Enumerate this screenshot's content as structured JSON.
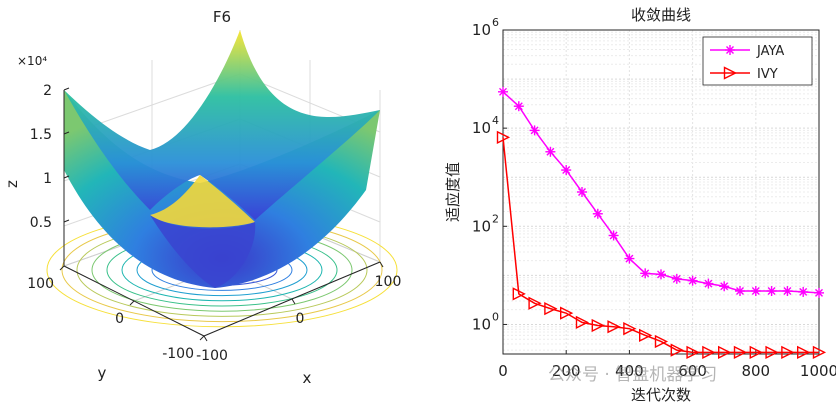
{
  "watermark": "公众号 · 智盘机器学习",
  "chart_data": [
    {
      "type": "surface",
      "title": "F6",
      "xlabel": "x",
      "ylabel": "y",
      "zlabel": "z",
      "exponent_label": "×10⁴",
      "x_ticks": [
        "-100",
        "0",
        "100"
      ],
      "y_ticks": [
        "-100",
        "0",
        "100"
      ],
      "z_ticks": [
        "0.5",
        "1",
        "1.5",
        "2"
      ],
      "xlim": [
        -100,
        100
      ],
      "ylim": [
        -100,
        100
      ],
      "zlim": [
        0,
        20000
      ],
      "grid": true
    },
    {
      "type": "line",
      "title": "收敛曲线",
      "xlabel": "迭代次数",
      "ylabel": "适应度值",
      "yscale": "log",
      "xlim": [
        0,
        1000
      ],
      "ylim": [
        0.25,
        1000000
      ],
      "x_ticks": [
        "0",
        "200",
        "400",
        "600",
        "800",
        "1000"
      ],
      "y_ticks": [
        {
          "base": "10",
          "exp": "0",
          "value": 1
        },
        {
          "base": "10",
          "exp": "2",
          "value": 100
        },
        {
          "base": "10",
          "exp": "4",
          "value": 10000
        },
        {
          "base": "10",
          "exp": "6",
          "value": 1000000
        }
      ],
      "grid": true,
      "legend_position": "top-right",
      "series": [
        {
          "name": "JAYA",
          "color": "#ff00ff",
          "marker": "asterisk",
          "x": [
            0,
            50,
            100,
            150,
            200,
            250,
            300,
            350,
            400,
            450,
            500,
            550,
            600,
            650,
            700,
            750,
            800,
            850,
            900,
            950,
            1000
          ],
          "y": [
            55000,
            28000,
            9000,
            3300,
            1400,
            500,
            180,
            65,
            22,
            11,
            10.5,
            8.5,
            7.8,
            6.8,
            6,
            4.8,
            4.8,
            4.8,
            4.8,
            4.6,
            4.4
          ]
        },
        {
          "name": "IVY",
          "color": "#ff0000",
          "marker": "triangle-right",
          "x": [
            0,
            50,
            100,
            150,
            200,
            250,
            300,
            350,
            400,
            450,
            500,
            550,
            600,
            650,
            700,
            750,
            800,
            850,
            900,
            950,
            1000
          ],
          "y": [
            6500,
            4.2,
            2.7,
            2.1,
            1.7,
            1.1,
            0.95,
            0.9,
            0.82,
            0.6,
            0.45,
            0.3,
            0.27,
            0.27,
            0.27,
            0.27,
            0.27,
            0.27,
            0.27,
            0.27,
            0.27
          ]
        }
      ]
    }
  ]
}
